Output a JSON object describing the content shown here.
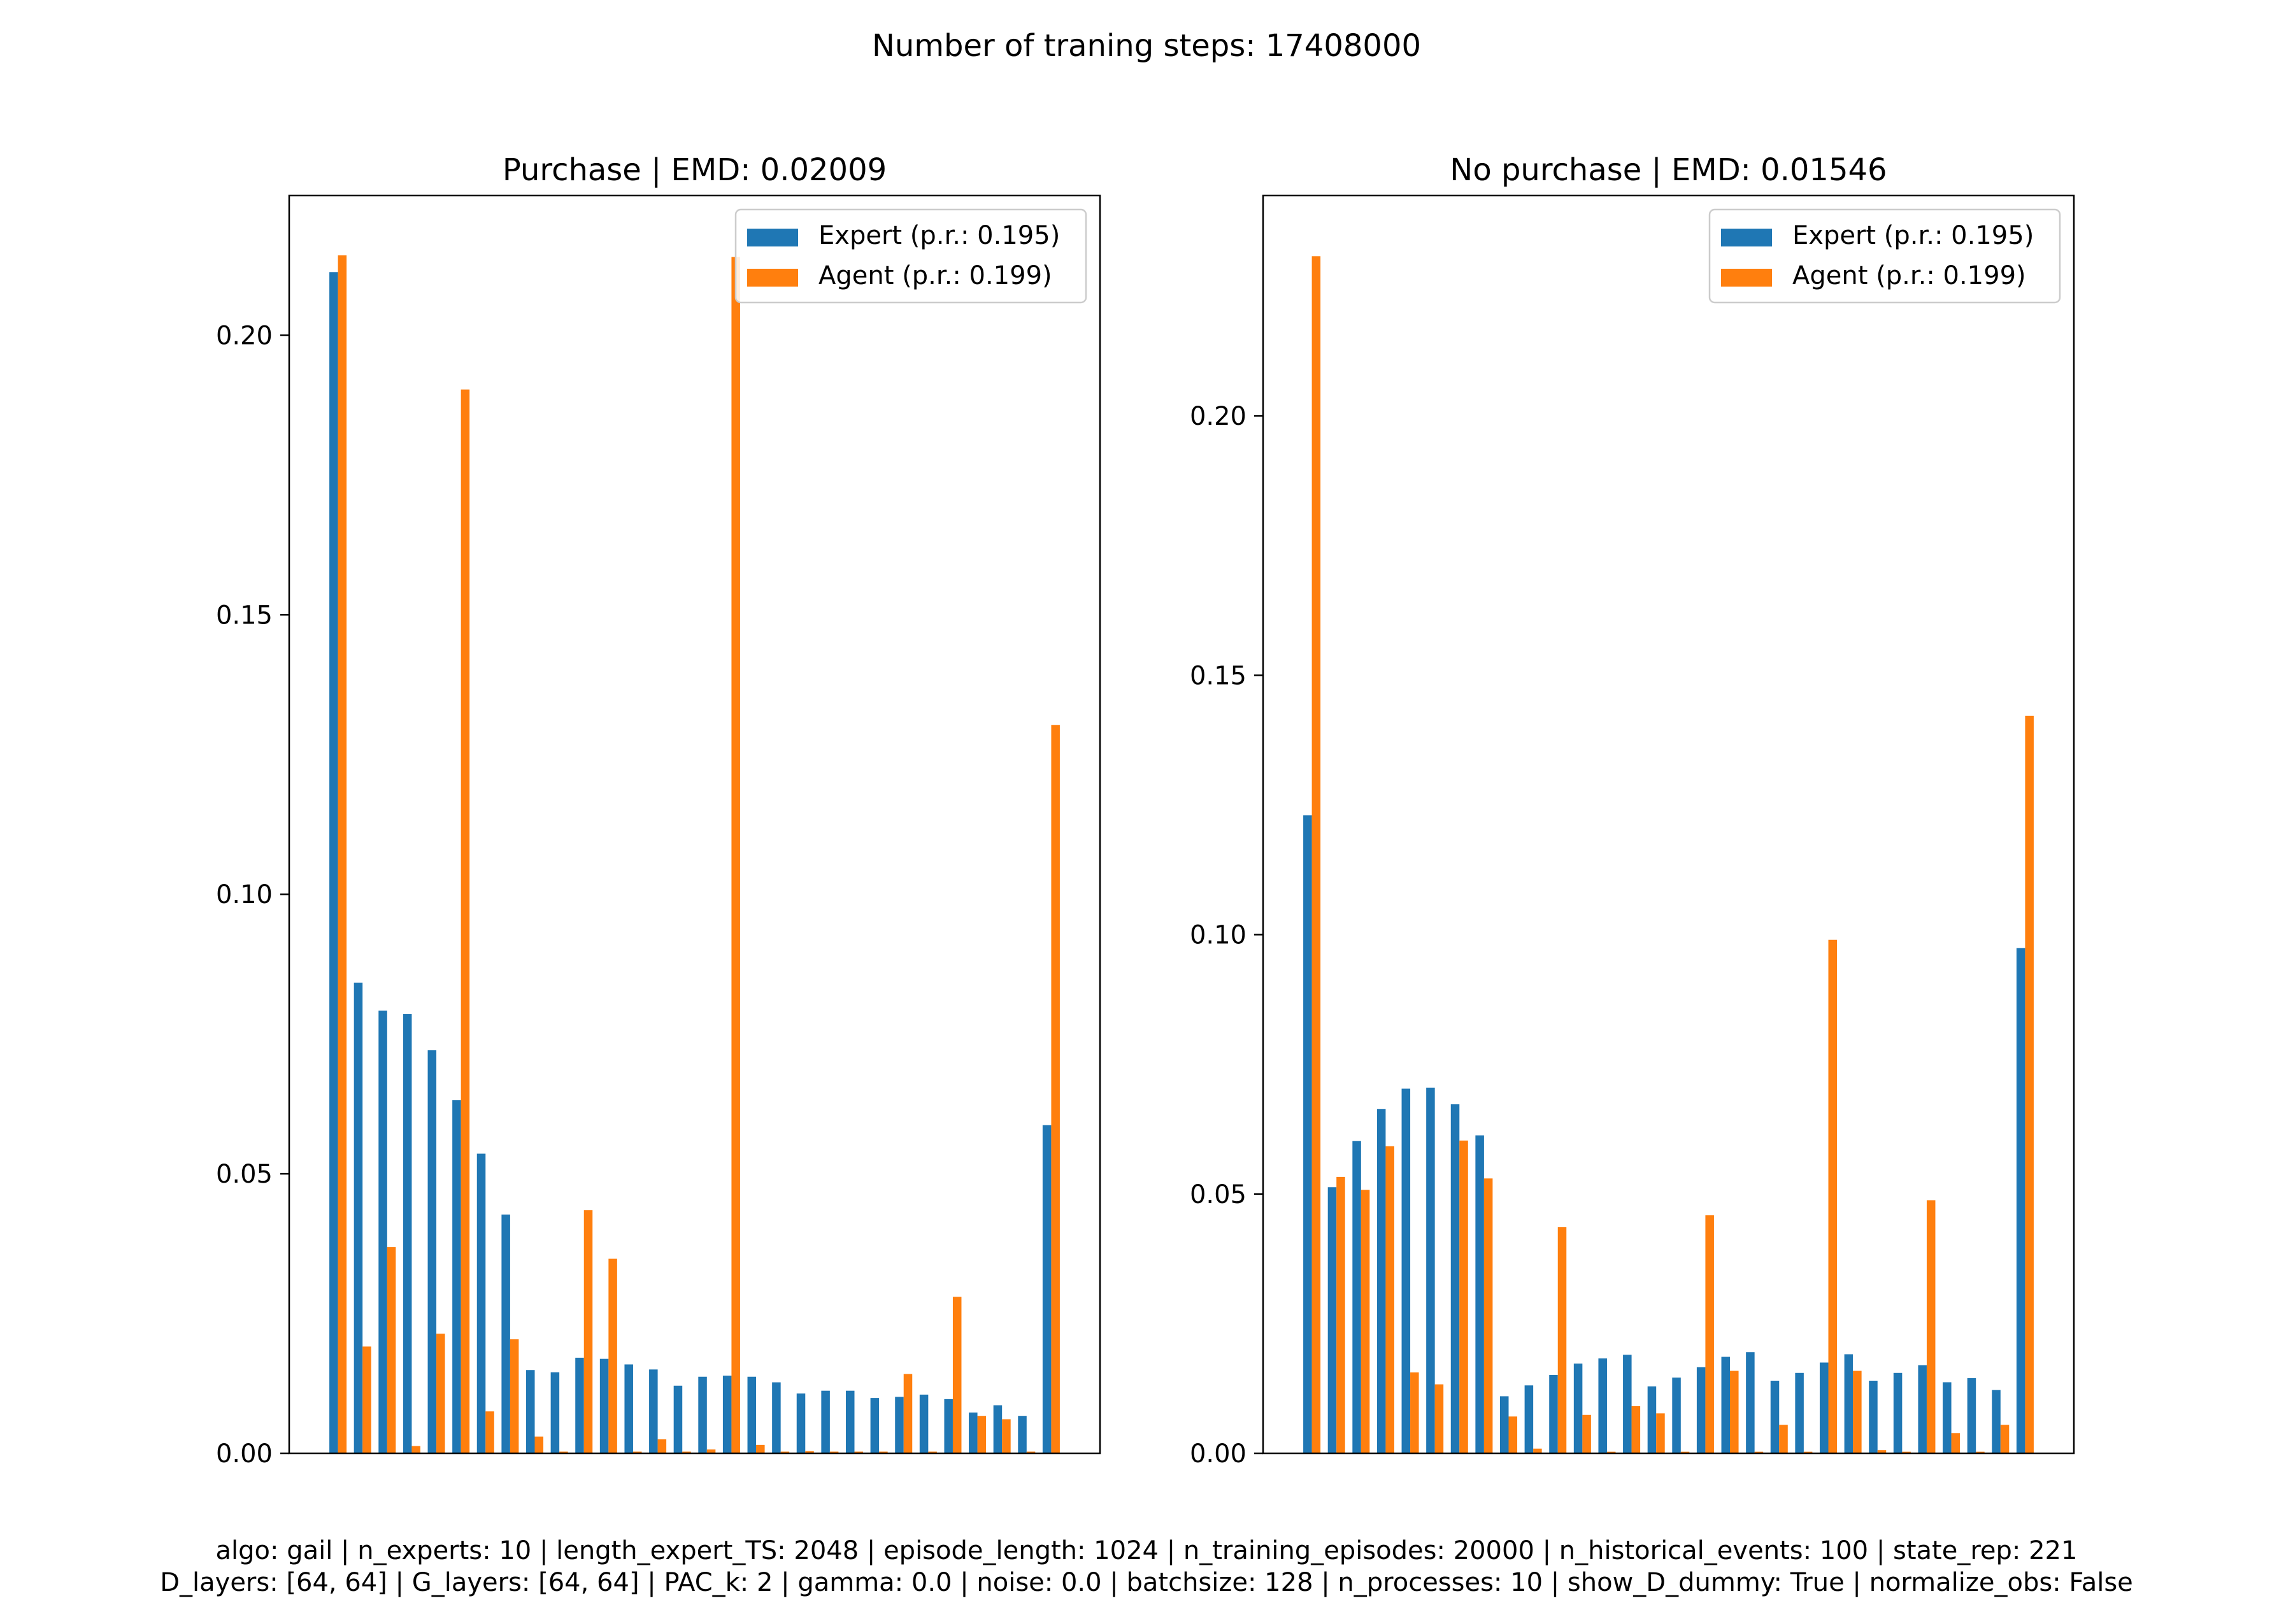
{
  "figure": {
    "suptitle": "Number of traning steps: 17408000",
    "footer_line1": "algo: gail | n_experts: 10 | length_expert_TS: 2048 | episode_length: 1024 | n_training_episodes: 20000 | n_historical_events: 100 | state_rep: 221",
    "footer_line2": "D_layers: [64, 64] | G_layers: [64, 64] | PAC_k: 2 | gamma: 0.0 | noise: 0.0 | batchsize: 128 | n_processes: 10 | show_D_dummy: True | normalize_obs: False"
  },
  "colors": {
    "expert": "#1f77b4",
    "agent": "#ff7f0e"
  },
  "chart_data": [
    {
      "type": "bar",
      "title": "Purchase | EMD: 0.02009",
      "xlabel": "",
      "ylabel": "",
      "ylim": [
        0,
        0.225
      ],
      "yticks": [
        0.0,
        0.05,
        0.1,
        0.15,
        0.2
      ],
      "ytick_labels": [
        "0.00",
        "0.05",
        "0.10",
        "0.15",
        "0.20"
      ],
      "legend_position": "top-right",
      "grid": false,
      "series": [
        {
          "name": "Expert (p.r.: 0.195)",
          "color": "#1f77b4",
          "values": [
            0.2113,
            0.0842,
            0.0792,
            0.0786,
            0.0721,
            0.0632,
            0.0536,
            0.0427,
            0.0149,
            0.0145,
            0.0171,
            0.0169,
            0.0159,
            0.015,
            0.0121,
            0.0137,
            0.0139,
            0.0137,
            0.0127,
            0.0107,
            0.0112,
            0.0112,
            0.0099,
            0.0101,
            0.0105,
            0.0097,
            0.0073,
            0.0086,
            0.0067,
            0.0587
          ]
        },
        {
          "name": "Agent (p.r.: 0.199)",
          "color": "#ff7f0e",
          "values": [
            0.2143,
            0.0191,
            0.0369,
            0.0013,
            0.0214,
            0.1903,
            0.0075,
            0.0204,
            0.003,
            0.0003,
            0.0435,
            0.0348,
            0.0003,
            0.0025,
            0.0003,
            0.0007,
            0.214,
            0.0015,
            0.0003,
            0.0004,
            0.0003,
            0.0003,
            0.0003,
            0.0142,
            0.0003,
            0.028,
            0.0067,
            0.0061,
            0.0003,
            0.1303
          ]
        }
      ]
    },
    {
      "type": "bar",
      "title": "No purchase | EMD: 0.01546",
      "xlabel": "",
      "ylabel": "",
      "ylim": [
        0,
        0.2425
      ],
      "yticks": [
        0.0,
        0.05,
        0.1,
        0.15,
        0.2
      ],
      "ytick_labels": [
        "0.00",
        "0.05",
        "0.10",
        "0.15",
        "0.20"
      ],
      "legend_position": "top-right",
      "grid": false,
      "series": [
        {
          "name": "Expert (p.r.: 0.195)",
          "color": "#1f77b4",
          "values": [
            0.123,
            0.0513,
            0.0602,
            0.0664,
            0.0703,
            0.0705,
            0.0673,
            0.0613,
            0.011,
            0.0131,
            0.0151,
            0.0173,
            0.0183,
            0.019,
            0.0129,
            0.0146,
            0.0166,
            0.0186,
            0.0195,
            0.014,
            0.0155,
            0.0175,
            0.0191,
            0.014,
            0.0155,
            0.017,
            0.0137,
            0.0145,
            0.0122,
            0.0974
          ]
        },
        {
          "name": "Agent (p.r.: 0.199)",
          "color": "#ff7f0e",
          "values": [
            0.2308,
            0.0533,
            0.0508,
            0.0592,
            0.0156,
            0.0133,
            0.0603,
            0.053,
            0.0071,
            0.0009,
            0.0436,
            0.0074,
            0.0003,
            0.0091,
            0.0077,
            0.0003,
            0.0459,
            0.0159,
            0.0003,
            0.0055,
            0.0003,
            0.099,
            0.0159,
            0.0006,
            0.0003,
            0.0488,
            0.0039,
            0.0003,
            0.0055,
            0.1422
          ]
        }
      ]
    }
  ]
}
